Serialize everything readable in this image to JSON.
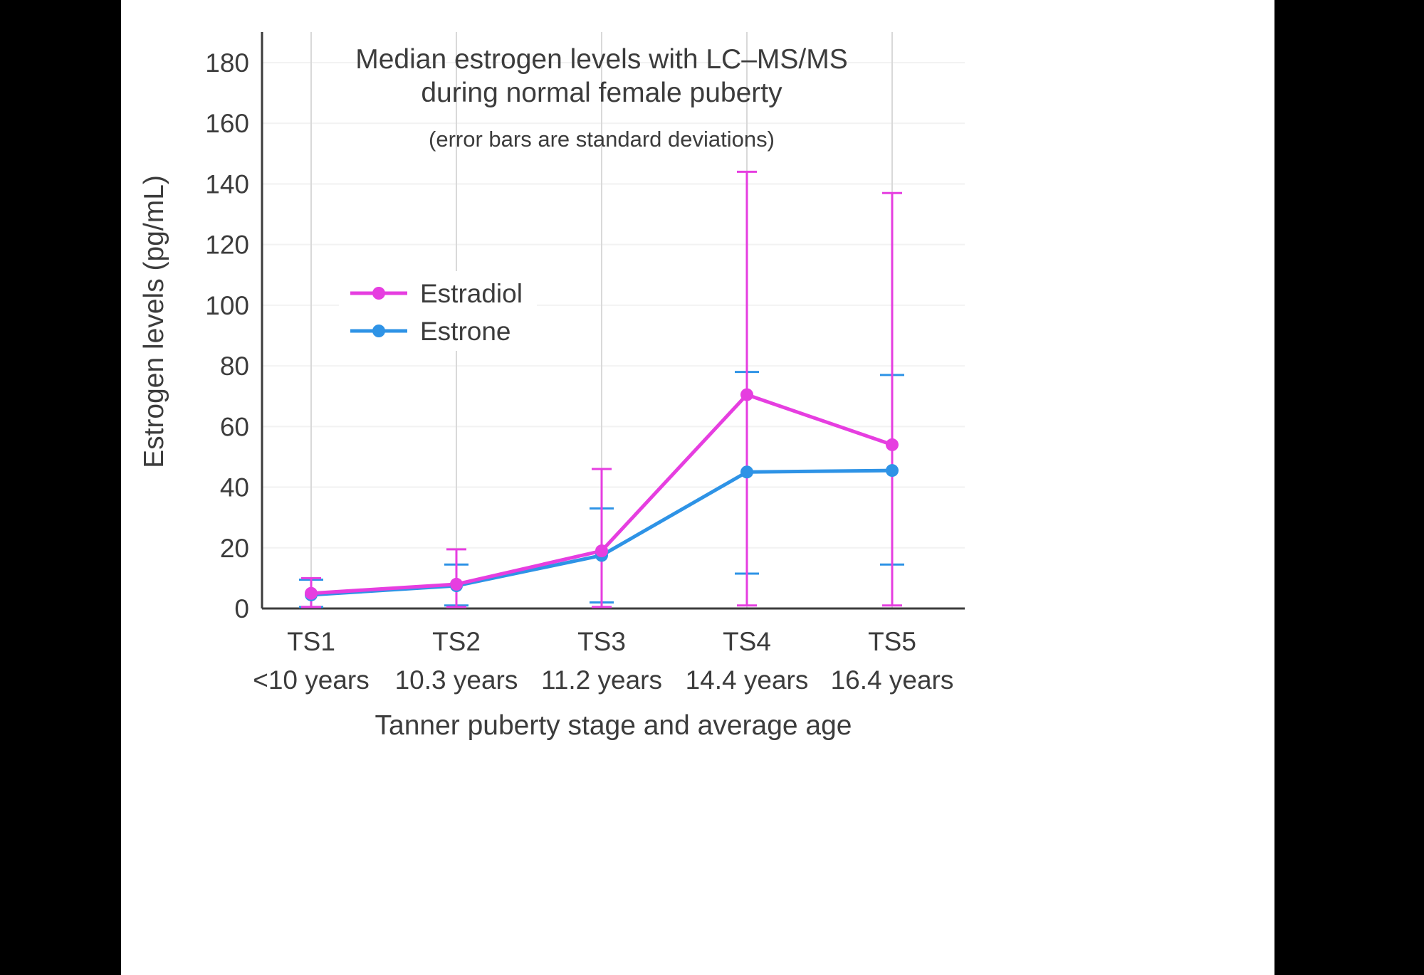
{
  "colors": {
    "estradiol": "#E63EE0",
    "estrone": "#2E93E6",
    "axis": "#3c3c3c",
    "text": "#3c3c3c",
    "grid_vertical": "#d9d9d9",
    "grid_horizontal": "#f2f2f2",
    "plot_background": "#ffffff",
    "letterbox": "#000000",
    "legend_background": "#ffffff"
  },
  "chart_data": {
    "type": "line",
    "title_line1": "Median estrogen levels with LC–MS/MS",
    "title_line2": "during normal female puberty",
    "subtitle": "(error bars are standard deviations)",
    "xlabel": "Tanner puberty stage and average age",
    "ylabel": "Estrogen levels (pg/mL)",
    "categories": [
      "TS1",
      "TS2",
      "TS3",
      "TS4",
      "TS5"
    ],
    "category_ages": [
      "<10 years",
      "10.3 years",
      "11.2 years",
      "14.4 years",
      "16.4 years"
    ],
    "y_ticks": [
      0,
      20,
      40,
      60,
      80,
      100,
      120,
      140,
      160,
      180
    ],
    "ylim": [
      0,
      190
    ],
    "grid": true,
    "legend_position": "upper-left-inside",
    "series": [
      {
        "name": "Estradiol",
        "color": "#E63EE0",
        "values": [
          5,
          8,
          19,
          70.5,
          54
        ],
        "err_upper": [
          10,
          19.5,
          46,
          144,
          137
        ],
        "err_lower": [
          0.5,
          0.5,
          0.5,
          1,
          1
        ]
      },
      {
        "name": "Estrone",
        "color": "#2E93E6",
        "values": [
          4.5,
          7.5,
          17.5,
          45,
          45.5
        ],
        "err_upper": [
          9.5,
          14.5,
          33,
          78,
          77
        ],
        "err_lower": [
          0.5,
          1,
          2,
          11.5,
          14.5
        ]
      }
    ]
  }
}
